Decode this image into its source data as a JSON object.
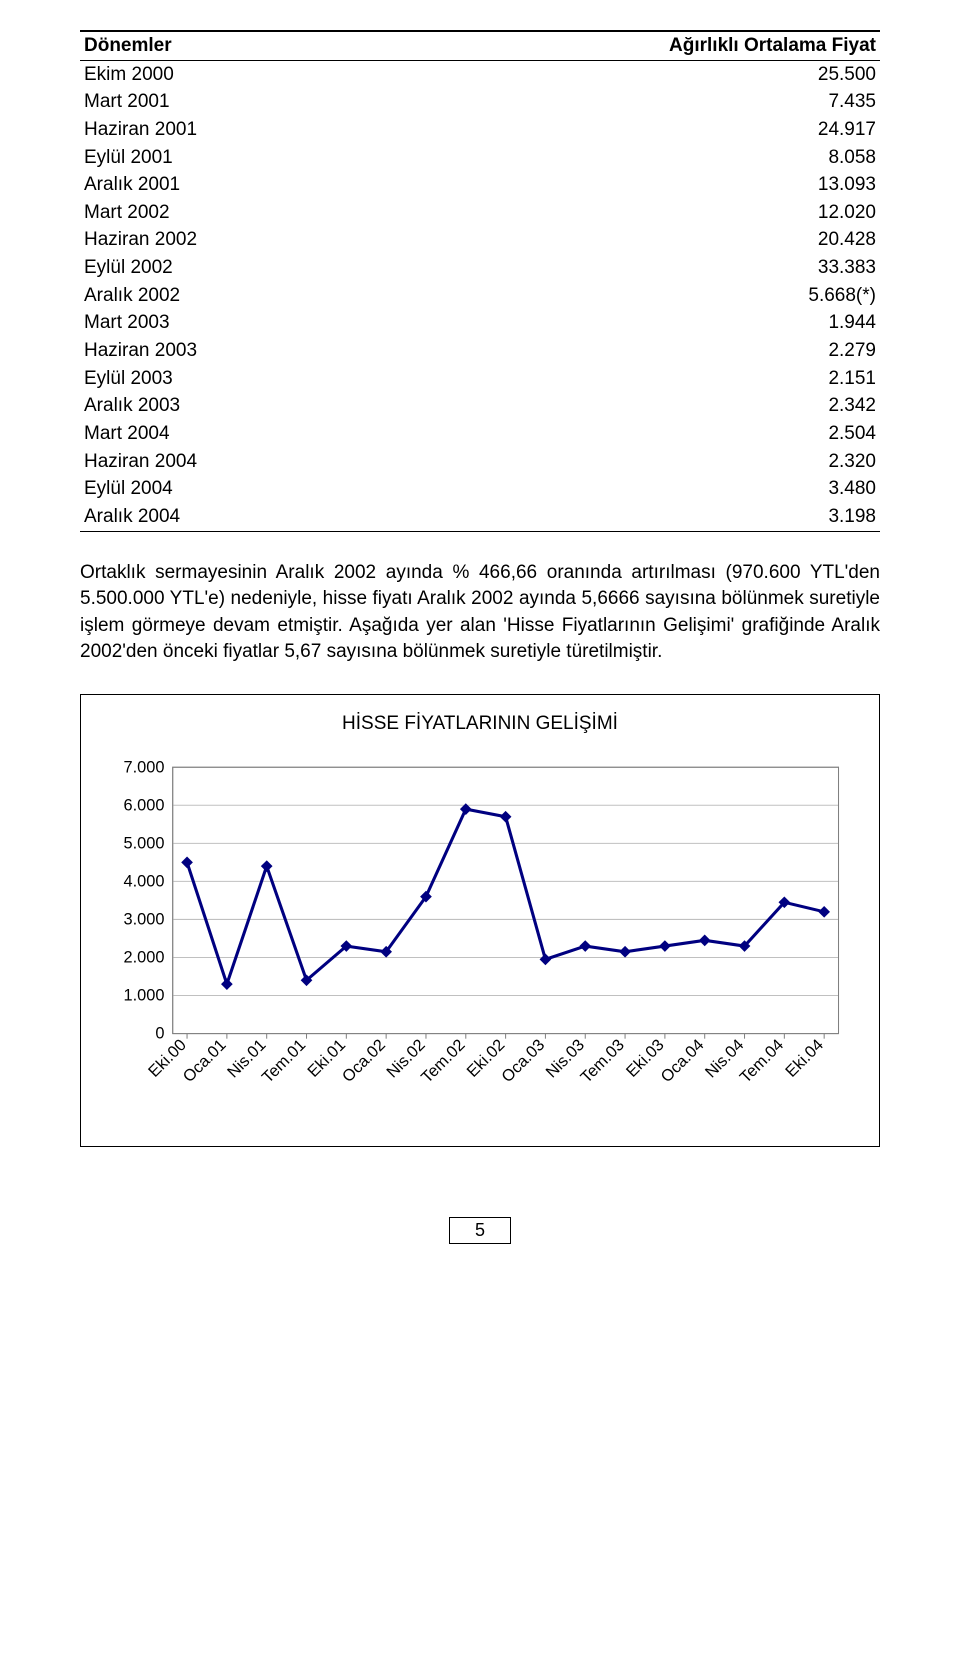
{
  "table": {
    "headers": {
      "period": "Dönemler",
      "price": "Ağırlıklı Ortalama Fiyat"
    },
    "rows": [
      {
        "period": "Ekim 2000",
        "price": "25.500"
      },
      {
        "period": "Mart 2001",
        "price": "7.435"
      },
      {
        "period": "Haziran 2001",
        "price": "24.917"
      },
      {
        "period": "Eylül 2001",
        "price": "8.058"
      },
      {
        "period": "Aralık 2001",
        "price": "13.093"
      },
      {
        "period": "Mart 2002",
        "price": "12.020"
      },
      {
        "period": "Haziran 2002",
        "price": "20.428"
      },
      {
        "period": "Eylül 2002",
        "price": "33.383"
      },
      {
        "period": "Aralık 2002",
        "price": "5.668(*)"
      },
      {
        "period": "Mart 2003",
        "price": "1.944"
      },
      {
        "period": "Haziran 2003",
        "price": "2.279"
      },
      {
        "period": "Eylül 2003",
        "price": "2.151"
      },
      {
        "period": "Aralık 2003",
        "price": "2.342"
      },
      {
        "period": "Mart 2004",
        "price": "2.504"
      },
      {
        "period": "Haziran 2004",
        "price": "2.320"
      },
      {
        "period": "Eylül 2004",
        "price": "3.480"
      },
      {
        "period": "Aralık 2004",
        "price": "3.198"
      }
    ]
  },
  "paragraph": "Ortaklık sermayesinin Aralık 2002 ayında % 466,66 oranında artırılması (970.600 YTL'den 5.500.000 YTL'e) nedeniyle, hisse fiyatı Aralık 2002 ayında 5,6666 sayısına bölünmek suretiyle işlem görmeye devam etmiştir. Aşağıda yer alan 'Hisse Fiyatlarının Gelişimi' grafiğinde Aralık 2002'den önceki fiyatlar 5,67 sayısına bölünmek suretiyle türetilmiştir.",
  "chart": {
    "title": "HİSSE FİYATLARININ GELİŞİMİ",
    "type": "line",
    "y_ticks": [
      0,
      1000,
      2000,
      3000,
      4000,
      5000,
      6000,
      7000
    ],
    "y_tick_labels": [
      "0",
      "1.000",
      "2.000",
      "3.000",
      "4.000",
      "5.000",
      "6.000",
      "7.000"
    ],
    "ylim": [
      0,
      7000
    ],
    "x_labels": [
      "Eki.00",
      "Oca.01",
      "Nis.01",
      "Tem.01",
      "Eki.01",
      "Oca.02",
      "Nis.02",
      "Tem.02",
      "Eki.02",
      "Oca.03",
      "Nis.03",
      "Tem.03",
      "Eki.03",
      "Oca.04",
      "Nis.04",
      "Tem.04",
      "Eki.04"
    ],
    "values": [
      4500,
      1300,
      4400,
      1400,
      2300,
      2150,
      3600,
      5900,
      5700,
      1950,
      2300,
      2150,
      2300,
      2450,
      2300,
      3450,
      3200
    ],
    "line_color": "#000080",
    "marker_color": "#000080",
    "marker_size": 10,
    "line_width": 3,
    "grid_color": "#c0c0c0",
    "plot_border_color": "#808080",
    "plot_background": "#ffffff",
    "outer_background": "#ffffff",
    "label_fontsize": 16,
    "tick_fontsize": 16
  },
  "page_number": "5"
}
